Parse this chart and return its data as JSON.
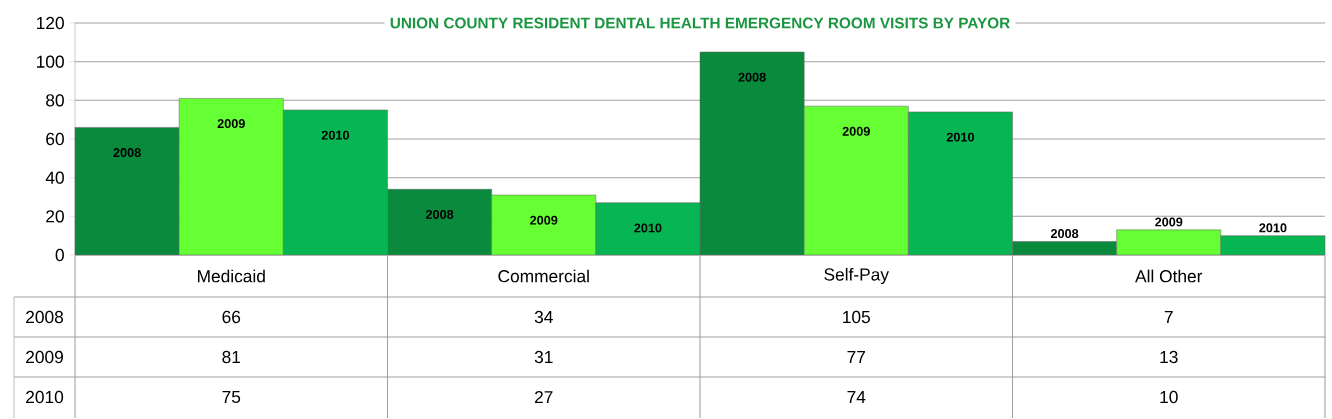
{
  "chart_data": {
    "type": "bar",
    "title": "UNION COUNTY RESIDENT DENTAL HEALTH EMERGENCY ROOM VISITS BY PAYOR",
    "categories": [
      "Medicaid",
      "Commercial",
      "Self-Pay",
      "All Other"
    ],
    "series": [
      {
        "name": "2008",
        "color": "#0a8a3c",
        "values": [
          66,
          34,
          105,
          7
        ]
      },
      {
        "name": "2009",
        "color": "#66ff33",
        "values": [
          81,
          31,
          77,
          13
        ]
      },
      {
        "name": "2010",
        "color": "#07b552",
        "values": [
          75,
          27,
          74,
          10
        ]
      }
    ],
    "ylim": [
      0,
      120
    ],
    "yticks": [
      0,
      20,
      40,
      60,
      80,
      100,
      120
    ],
    "grid": true,
    "data_labels": true
  }
}
